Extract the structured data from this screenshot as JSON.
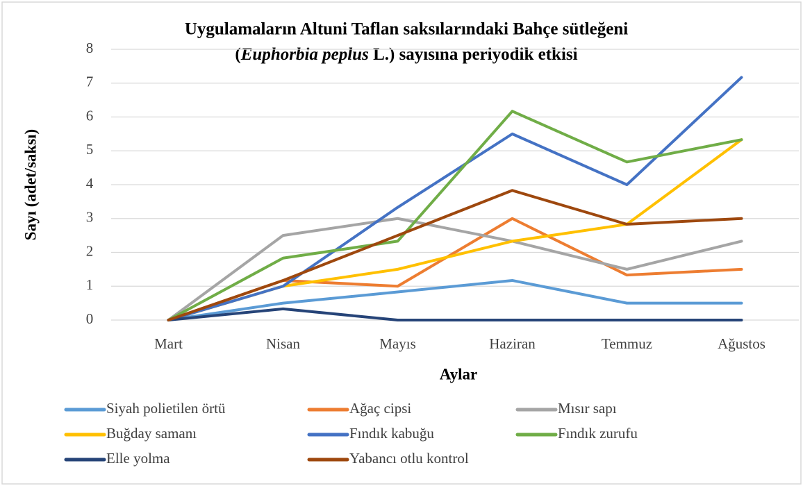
{
  "chart_data": {
    "type": "line",
    "title": [
      "Uygulamaların Altuni Taflan saksılarındaki Bahçe sütleğeni",
      "(",
      "Euphorbia peplus",
      " L.) sayısına periyodik etkisi"
    ],
    "x_label": "Aylar",
    "y_label": "Sayı (adet/saksı)",
    "categories": [
      "Mart",
      "Nisan",
      "Mayıs",
      "Haziran",
      "Temmuz",
      "Ağustos"
    ],
    "ylim": [
      0,
      8
    ],
    "yticks": [
      0,
      1,
      2,
      3,
      4,
      5,
      6,
      7,
      8
    ],
    "grid": true,
    "legend": "bottom",
    "series": [
      {
        "name": "Siyah polietilen örtü",
        "color": "#5b9bd5",
        "values": [
          0,
          0.5,
          0.83,
          1.17,
          0.5,
          0.5
        ]
      },
      {
        "name": "Ağaç cipsi",
        "color": "#ed7d31",
        "values": [
          0,
          1.17,
          1,
          3,
          1.33,
          1.5
        ]
      },
      {
        "name": "Mısır sapı",
        "color": "#a5a5a5",
        "values": [
          0,
          2.5,
          3,
          2.33,
          1.5,
          2.33
        ]
      },
      {
        "name": "Buğday samanı",
        "color": "#ffc000",
        "values": [
          0,
          1,
          1.5,
          2.33,
          2.83,
          5.33
        ]
      },
      {
        "name": "Fındık kabuğu",
        "color": "#4472c4",
        "values": [
          0,
          1,
          3.33,
          5.5,
          4,
          7.17
        ]
      },
      {
        "name": "Fındık zurufu",
        "color": "#70ad47",
        "values": [
          0,
          1.83,
          2.33,
          6.17,
          4.67,
          5.33
        ]
      },
      {
        "name": "Elle yolma",
        "color": "#264478",
        "values": [
          0,
          0.33,
          0,
          0,
          0,
          0
        ]
      },
      {
        "name": "Yabancı otlu kontrol",
        "color": "#9e480e",
        "values": [
          0,
          1.17,
          2.5,
          3.83,
          2.83,
          3
        ]
      }
    ]
  }
}
